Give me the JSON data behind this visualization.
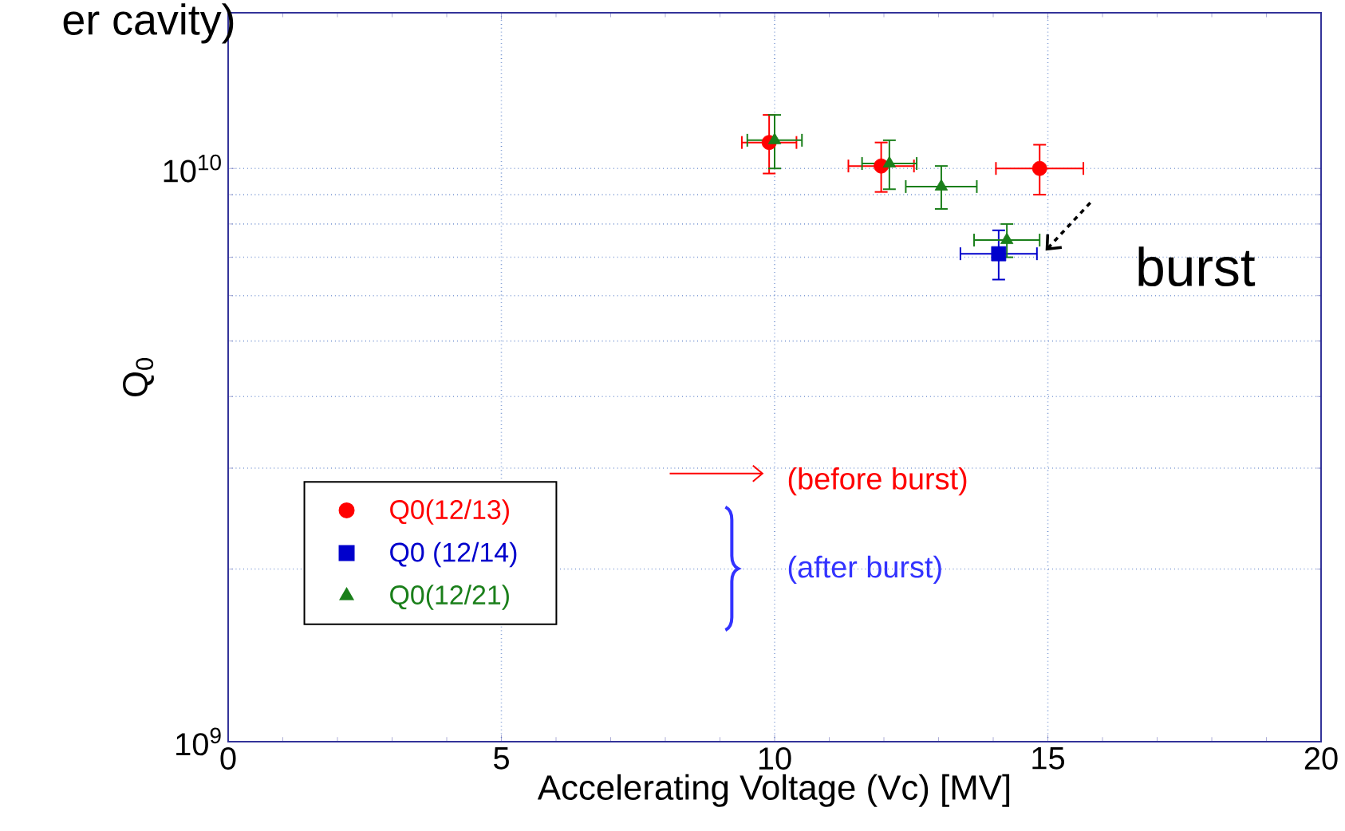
{
  "chart_data": {
    "type": "scatter",
    "title": "er cavity)",
    "xlabel": "Accelerating Voltage (Vc) [MV]",
    "ylabel": "Q$_{0}$",
    "xlim": [
      0,
      20
    ],
    "ylim": [
      1000000000.0,
      18700000000.0
    ],
    "xticks": [
      0,
      5,
      10,
      15,
      20
    ],
    "yticks": [
      {
        "value": 1000000000.0,
        "label": "10$^{9}$"
      },
      {
        "value": 10000000000.0,
        "label": "10$^{10}$"
      }
    ],
    "log": "y",
    "grid": true,
    "legend": "bottom left",
    "series": [
      {
        "name": "Q0(12/13)",
        "color": "#ff0000",
        "marker": "circle",
        "x": [
          9.9,
          11.95,
          14.85
        ],
        "values": [
          11100000000.0,
          10100000000.0,
          10000000000.0
        ],
        "xerrors": [
          0.5,
          0.6,
          0.8
        ],
        "errors": [
          1300000000.0,
          1000000000.0,
          1000000000.0
        ]
      },
      {
        "name": "Q0 (12/14)",
        "color": "#0000cc",
        "marker": "square",
        "x": [
          14.1
        ],
        "values": [
          7100000000.0
        ],
        "xerrors": [
          0.7
        ],
        "errors": [
          700000000.0
        ]
      },
      {
        "name": "Q0(12/21)",
        "color": "#1a7f1a",
        "marker": "triangle",
        "x": [
          10.0,
          12.1,
          13.05,
          14.25
        ],
        "values": [
          11200000000.0,
          10200000000.0,
          9300000000.0,
          7500000000.0
        ],
        "xerrors": [
          0.5,
          0.5,
          0.65,
          0.6
        ],
        "errors": [
          1200000000.0,
          1000000000.0,
          800000000.0,
          500000000.0
        ]
      }
    ],
    "annotations": [
      {
        "text": "burst",
        "x": 14.9,
        "y": 7100000000.0
      },
      "(before burst)",
      "(after burst)"
    ]
  }
}
